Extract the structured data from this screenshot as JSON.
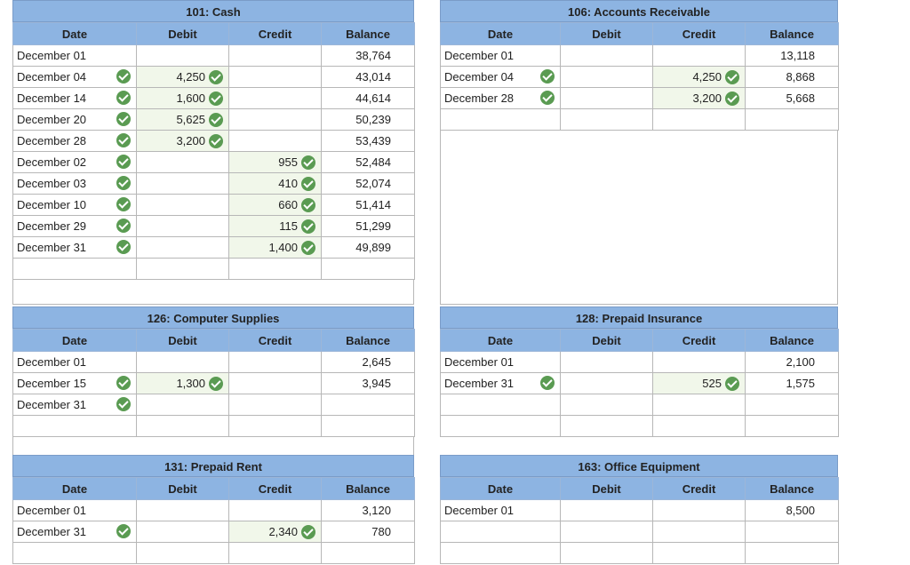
{
  "headers": {
    "date": "Date",
    "debit": "Debit",
    "credit": "Credit",
    "balance": "Balance"
  },
  "accounts": [
    {
      "title": "101: Cash",
      "rows": [
        {
          "date": "December 01",
          "dc": false,
          "debit": "",
          "dbc": false,
          "credit": "",
          "cc": false,
          "balance": "38,764"
        },
        {
          "date": "December 04",
          "dc": true,
          "debit": "4,250",
          "dbc": true,
          "credit": "",
          "cc": false,
          "balance": "43,014"
        },
        {
          "date": "December 14",
          "dc": true,
          "debit": "1,600",
          "dbc": true,
          "credit": "",
          "cc": false,
          "balance": "44,614"
        },
        {
          "date": "December 20",
          "dc": true,
          "debit": "5,625",
          "dbc": true,
          "credit": "",
          "cc": false,
          "balance": "50,239"
        },
        {
          "date": "December 28",
          "dc": true,
          "debit": "3,200",
          "dbc": true,
          "credit": "",
          "cc": false,
          "balance": "53,439"
        },
        {
          "date": "December 02",
          "dc": true,
          "debit": "",
          "dbc": false,
          "credit": "955",
          "cc": true,
          "balance": "52,484"
        },
        {
          "date": "December 03",
          "dc": true,
          "debit": "",
          "dbc": false,
          "credit": "410",
          "cc": true,
          "balance": "52,074"
        },
        {
          "date": "December 10",
          "dc": true,
          "debit": "",
          "dbc": false,
          "credit": "660",
          "cc": true,
          "balance": "51,414"
        },
        {
          "date": "December 29",
          "dc": true,
          "debit": "",
          "dbc": false,
          "credit": "115",
          "cc": true,
          "balance": "51,299"
        },
        {
          "date": "December 31",
          "dc": true,
          "debit": "",
          "dbc": false,
          "credit": "1,400",
          "cc": true,
          "balance": "49,899"
        },
        {
          "date": "",
          "dc": false,
          "debit": "",
          "dbc": false,
          "credit": "",
          "cc": false,
          "balance": ""
        }
      ]
    },
    {
      "title": "106: Accounts Receivable",
      "rows": [
        {
          "date": "December 01",
          "dc": false,
          "debit": "",
          "dbc": false,
          "credit": "",
          "cc": false,
          "balance": "13,118"
        },
        {
          "date": "December 04",
          "dc": true,
          "debit": "",
          "dbc": false,
          "credit": "4,250",
          "cc": true,
          "balance": "8,868"
        },
        {
          "date": "December 28",
          "dc": true,
          "debit": "",
          "dbc": false,
          "credit": "3,200",
          "cc": true,
          "balance": "5,668"
        },
        {
          "date": "",
          "dc": false,
          "debit": "",
          "dbc": false,
          "credit": "",
          "cc": false,
          "balance": ""
        }
      ]
    },
    {
      "title": "126: Computer Supplies",
      "rows": [
        {
          "date": "December 01",
          "dc": false,
          "debit": "",
          "dbc": false,
          "credit": "",
          "cc": false,
          "balance": "2,645"
        },
        {
          "date": "December 15",
          "dc": true,
          "debit": "1,300",
          "dbc": true,
          "credit": "",
          "cc": false,
          "balance": "3,945"
        },
        {
          "date": "December 31",
          "dc": true,
          "debit": "",
          "dbc": false,
          "credit": "",
          "cc": false,
          "balance": ""
        },
        {
          "date": "",
          "dc": false,
          "debit": "",
          "dbc": false,
          "credit": "",
          "cc": false,
          "balance": ""
        }
      ]
    },
    {
      "title": "128: Prepaid Insurance",
      "rows": [
        {
          "date": "December 01",
          "dc": false,
          "debit": "",
          "dbc": false,
          "credit": "",
          "cc": false,
          "balance": "2,100"
        },
        {
          "date": "December 31",
          "dc": true,
          "debit": "",
          "dbc": false,
          "credit": "525",
          "cc": true,
          "balance": "1,575"
        },
        {
          "date": "",
          "dc": false,
          "debit": "",
          "dbc": false,
          "credit": "",
          "cc": false,
          "balance": ""
        },
        {
          "date": "",
          "dc": false,
          "debit": "",
          "dbc": false,
          "credit": "",
          "cc": false,
          "balance": ""
        }
      ]
    },
    {
      "title": "131: Prepaid Rent",
      "rows": [
        {
          "date": "December 01",
          "dc": false,
          "debit": "",
          "dbc": false,
          "credit": "",
          "cc": false,
          "balance": "3,120"
        },
        {
          "date": "December 31",
          "dc": true,
          "debit": "",
          "dbc": false,
          "credit": "2,340",
          "cc": true,
          "balance": "780"
        },
        {
          "date": "",
          "dc": false,
          "debit": "",
          "dbc": false,
          "credit": "",
          "cc": false,
          "balance": ""
        }
      ]
    },
    {
      "title": "163: Office Equipment",
      "rows": [
        {
          "date": "December 01",
          "dc": false,
          "debit": "",
          "dbc": false,
          "credit": "",
          "cc": false,
          "balance": "8,500"
        },
        {
          "date": "",
          "dc": false,
          "debit": "",
          "dbc": false,
          "credit": "",
          "cc": false,
          "balance": ""
        },
        {
          "date": "",
          "dc": false,
          "debit": "",
          "dbc": false,
          "credit": "",
          "cc": false,
          "balance": ""
        }
      ]
    }
  ],
  "colors": {
    "header": "#8db4e2",
    "check": "#5a9b52",
    "filled_cell": "#f1f7ea"
  },
  "icons": {
    "check": "checkmark-circle-icon"
  }
}
